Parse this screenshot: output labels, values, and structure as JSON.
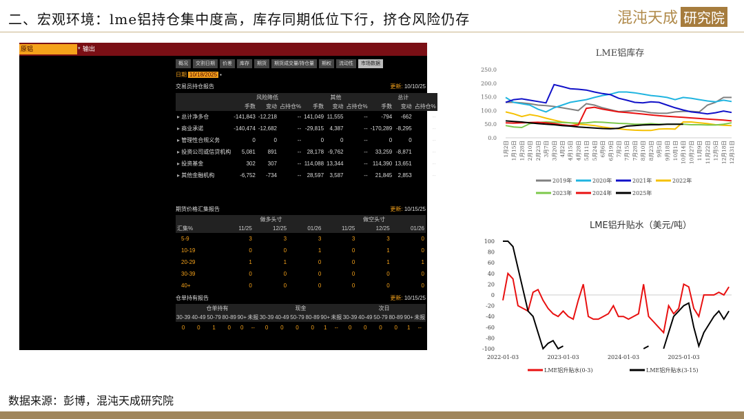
{
  "header": {
    "title": "二、宏观环境：lme铝持仓集中度高，库存同期低位下行，挤仓风险仍存",
    "logo_text": "混沌天成",
    "logo_box": "研究院"
  },
  "footer": {
    "source": "数据来源：彭博，混沌天成研究院"
  },
  "terminal": {
    "security": "原铝",
    "output_label": "输出",
    "tabs": [
      "概况",
      "交割日期",
      "价差",
      "库存",
      "期货",
      "期货成交量/持仓量",
      "期权",
      "流动性",
      "市场数据"
    ],
    "active_tab": 8,
    "date_label": "日期",
    "date_value": "10/18/2025",
    "cot": {
      "title": "交易员持仓报告",
      "update_label": "更新:",
      "update_value": "10/10/25",
      "groups": [
        "风险降低",
        "其他",
        "总计"
      ],
      "subheaders": [
        "手数",
        "变动",
        "占持仓%",
        "手数",
        "变动",
        "占持仓%",
        "手数",
        "变动",
        "占持仓%"
      ],
      "rows": [
        {
          "label": "总计净多仓",
          "values": [
            "-141,843",
            "-12,218",
            "--",
            "141,049",
            "11,555",
            "--",
            "-794",
            "-662",
            "--"
          ]
        },
        {
          "label": "商业承诺",
          "values": [
            "-140,474",
            "-12,682",
            "--",
            "-29,815",
            "4,387",
            "--",
            "-170,289",
            "-8,295",
            "--"
          ]
        },
        {
          "label": "管理性合规义务",
          "values": [
            "0",
            "0",
            "--",
            "0",
            "0",
            "--",
            "0",
            "0",
            "--"
          ]
        },
        {
          "label": "投资公司或信贷机构",
          "values": [
            "5,081",
            "891",
            "--",
            "28,178",
            "-9,762",
            "--",
            "33,259",
            "-8,871",
            "--"
          ]
        },
        {
          "label": "投资基金",
          "values": [
            "302",
            "307",
            "--",
            "114,088",
            "13,344",
            "--",
            "114,390",
            "13,651",
            "--"
          ]
        },
        {
          "label": "其他金融机构",
          "values": [
            "-6,752",
            "-734",
            "--",
            "28,597",
            "3,587",
            "--",
            "21,845",
            "2,853",
            "--"
          ]
        }
      ]
    },
    "concentration": {
      "title": "期货价格汇集报告",
      "update_label": "更新:",
      "update_value": "10/15/25",
      "groups": [
        "做多头寸",
        "做空头寸"
      ],
      "row_header": "汇集%",
      "months": [
        "11/25",
        "12/25",
        "01/26",
        "11/25",
        "12/25",
        "01/26"
      ],
      "rows": [
        {
          "label": "5-9",
          "values": [
            "3",
            "3",
            "3",
            "3",
            "3",
            "0"
          ]
        },
        {
          "label": "10-19",
          "values": [
            "0",
            "0",
            "1",
            "0",
            "1",
            "0"
          ]
        },
        {
          "label": "20-29",
          "values": [
            "1",
            "1",
            "0",
            "0",
            "1",
            "1"
          ]
        },
        {
          "label": "30-39",
          "values": [
            "0",
            "0",
            "0",
            "0",
            "0",
            "0"
          ]
        },
        {
          "label": "40+",
          "values": [
            "0",
            "0",
            "0",
            "0",
            "0",
            "0"
          ]
        }
      ]
    },
    "warrants": {
      "title": "仓单持有报告",
      "update_label": "更新:",
      "update_value": "10/15/25",
      "groups": [
        "仓单持有",
        "现金",
        "次日"
      ],
      "buckets": [
        "30-39",
        "40-49",
        "50-79",
        "80-89",
        "90+",
        "未报",
        "30-39",
        "40-49",
        "50-79",
        "80-89",
        "90+",
        "未报",
        "30-39",
        "40-49",
        "50-79",
        "80-89",
        "90+",
        "未报"
      ],
      "values": [
        "0",
        "0",
        "1",
        "0",
        "0",
        "--",
        "0",
        "0",
        "0",
        "0",
        "1",
        "--",
        "0",
        "0",
        "0",
        "0",
        "1",
        "--"
      ]
    }
  },
  "chart_data": [
    {
      "type": "line",
      "title": "LME铝库存",
      "ylim": [
        0,
        250
      ],
      "yticks": [
        "0.0",
        "50.0",
        "100.0",
        "150.0",
        "200.0",
        "250.0"
      ],
      "grid": false,
      "legend": "bottom",
      "categories": [
        "1月2日",
        "1月15日",
        "1月28日",
        "2月10日",
        "2月23日",
        "3月7日",
        "3月20日",
        "4月2日",
        "4月15日",
        "4月28日",
        "5月11日",
        "5月24日",
        "6月6日",
        "6月19日",
        "7月2日",
        "7月15日",
        "7月28日",
        "8月10日",
        "8月23日",
        "9月5日",
        "9月18日",
        "10月1日",
        "10月14日",
        "10月27日",
        "11月9日",
        "11月22日",
        "12月5日",
        "12月18日",
        "12月31日"
      ],
      "series": [
        {
          "name": "2019年",
          "color": "#808080",
          "values": [
            130,
            130,
            128,
            125,
            120,
            118,
            115,
            110,
            105,
            100,
            125,
            120,
            110,
            103,
            96,
            98,
            100,
            97,
            92,
            90,
            90,
            95,
            97,
            97,
            95,
            120,
            130,
            148,
            148
          ]
        },
        {
          "name": "2020年",
          "color": "#1fb4e0",
          "values": [
            148,
            130,
            125,
            120,
            105,
            95,
            110,
            120,
            130,
            135,
            140,
            148,
            155,
            160,
            168,
            168,
            165,
            160,
            155,
            152,
            148,
            140,
            148,
            145,
            140,
            135,
            132,
            138,
            133
          ]
        },
        {
          "name": "2021年",
          "color": "#1010c8",
          "values": [
            130,
            140,
            143,
            138,
            133,
            128,
            195,
            188,
            180,
            178,
            175,
            168,
            162,
            158,
            145,
            138,
            130,
            128,
            132,
            130,
            120,
            110,
            102,
            95,
            92,
            88,
            92,
            98,
            93
          ]
        },
        {
          "name": "2022年",
          "color": "#f5c000",
          "values": [
            95,
            88,
            78,
            85,
            80,
            72,
            65,
            58,
            55,
            50,
            48,
            45,
            40,
            36,
            33,
            30,
            28,
            27,
            27,
            32,
            33,
            32,
            58,
            58,
            55,
            52,
            48,
            46,
            45
          ]
        },
        {
          "name": "2023年",
          "color": "#7cc84a",
          "values": [
            45,
            40,
            38,
            52,
            56,
            58,
            57,
            56,
            55,
            54,
            55,
            58,
            57,
            55,
            53,
            52,
            50,
            50,
            52,
            50,
            50,
            50,
            50,
            48,
            48,
            47,
            47,
            50,
            55
          ]
        },
        {
          "name": "2024年",
          "color": "#e81010",
          "values": [
            55,
            54,
            55,
            56,
            57,
            55,
            52,
            48,
            45,
            47,
            108,
            112,
            105,
            100,
            95,
            93,
            90,
            87,
            84,
            81,
            79,
            77,
            75,
            73,
            71,
            69,
            67,
            65,
            62
          ]
        },
        {
          "name": "2025年",
          "color": "#000000",
          "values": [
            62,
            60,
            58,
            55,
            52,
            50,
            48,
            45,
            43,
            40,
            38,
            36,
            34,
            33,
            35,
            43,
            45,
            47,
            48,
            48,
            50,
            50,
            50,
            null,
            null,
            null,
            null,
            null,
            null
          ]
        }
      ]
    },
    {
      "type": "line",
      "title": "LME铝升贴水（美元/吨）",
      "ylim": [
        -100,
        100
      ],
      "yticks": [
        "-100",
        "-80",
        "-60",
        "-40",
        "-20",
        "0",
        "20",
        "40",
        "60",
        "80",
        "100"
      ],
      "xticks": [
        "2022-01-03",
        "2023-01-03",
        "2024-01-03",
        "2025-01-03"
      ],
      "legend": "bottom",
      "x": [
        "2022-01",
        "2022-02",
        "2022-03",
        "2022-04",
        "2022-05",
        "2022-06",
        "2022-07",
        "2022-08",
        "2022-09",
        "2022-10",
        "2022-11",
        "2022-12",
        "2023-01",
        "2023-02",
        "2023-03",
        "2023-04",
        "2023-05",
        "2023-06",
        "2023-07",
        "2023-08",
        "2023-09",
        "2023-10",
        "2023-11",
        "2023-12",
        "2024-01",
        "2024-02",
        "2024-03",
        "2024-04",
        "2024-05",
        "2024-06",
        "2024-07",
        "2024-08",
        "2024-09",
        "2024-10",
        "2024-11",
        "2024-12",
        "2025-01",
        "2025-02",
        "2025-03",
        "2025-04",
        "2025-05",
        "2025-06",
        "2025-07",
        "2025-08",
        "2025-09",
        "2025-10"
      ],
      "series": [
        {
          "name": "LME铝升贴水(0-3)",
          "color": "#e81010",
          "values": [
            -10,
            40,
            30,
            -20,
            -25,
            -30,
            5,
            10,
            -10,
            -25,
            -35,
            -40,
            -30,
            -40,
            -45,
            -10,
            20,
            -40,
            -45,
            -45,
            -40,
            -35,
            -20,
            -40,
            -40,
            -45,
            -40,
            -35,
            20,
            -40,
            -50,
            -60,
            -70,
            -20,
            -35,
            -25,
            20,
            15,
            -25,
            -40,
            0,
            0,
            0,
            5,
            0,
            15
          ]
        },
        {
          "name": "LME铝升贴水(3-15)",
          "color": "#000000",
          "values": [
            100,
            100,
            90,
            50,
            10,
            -30,
            -40,
            -70,
            -100,
            -90,
            -85,
            -100,
            -95,
            null,
            null,
            null,
            null,
            null,
            null,
            null,
            null,
            null,
            null,
            null,
            null,
            null,
            null,
            null,
            -100,
            -95,
            null,
            null,
            -100,
            -70,
            -40,
            -30,
            -20,
            -15,
            -60,
            -95,
            -70,
            -55,
            -40,
            -30,
            -45,
            -30
          ]
        }
      ]
    }
  ]
}
